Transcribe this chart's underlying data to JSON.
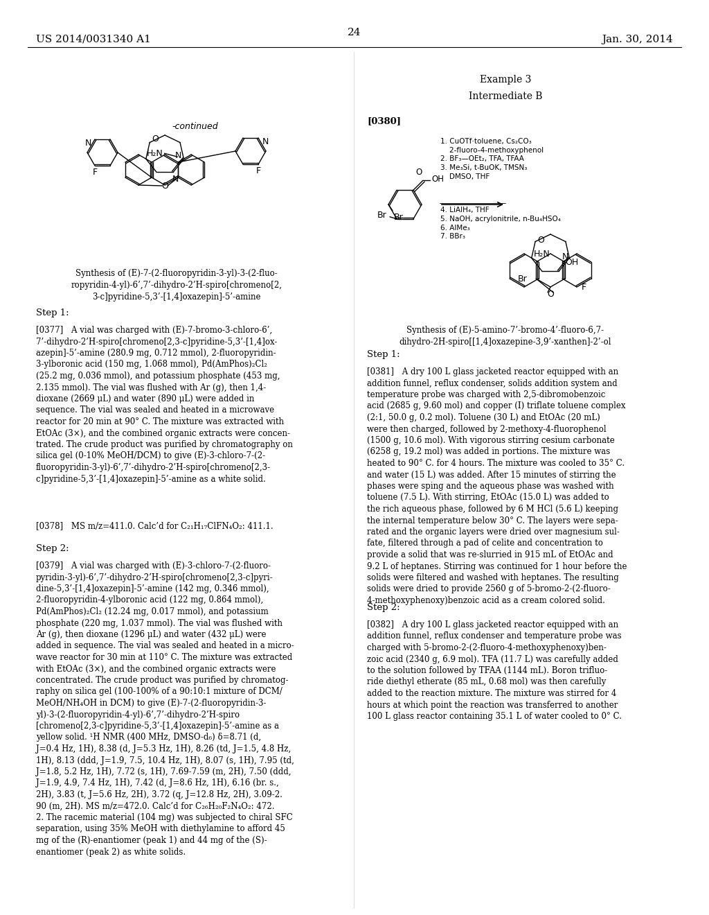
{
  "background_color": "#ffffff",
  "page_number": "24",
  "header_left": "US 2014/0031340 A1",
  "header_right": "Jan. 30, 2014",
  "continued_label": "-continued",
  "synthesis_caption_left": "Synthesis of (E)-7-(2-fluoropyridin-3-yl)-3-(2-fluo-\nropyridin-4-yl)-6’,7’-dihydro-2’H-spiro[chromeno[2,\n3-c]pyridine-5,3’-[1,4]oxazepin]-5’-amine",
  "step1_label": "Step 1:",
  "para_0377": "[0377] A vial was charged with (E)-7-bromo-3-chloro-6’,\n7’-dihydro-2’H-spiro[chromeno[2,3-c]pyridine-5,3’-[1,4]ox-\nazepin]-5’-amine (280.9 mg, 0.712 mmol), 2-fluoropyridin-\n3-ylboronic acid (150 mg, 1.068 mmol), Pd(AmPhos)₂Cl₂\n(25.2 mg, 0.036 mmol), and potassium phosphate (453 mg,\n2.135 mmol). The vial was flushed with Ar (g), then 1,4-\ndioxane (2669 μL) and water (890 μL) were added in\nsequence. The vial was sealed and heated in a microwave\nreactor for 20 min at 90° C. The mixture was extracted with\nEtOAc (3×), and the combined organic extracts were concen-\ntrated. The crude product was purified by chromatography on\nsilica gel (0-10% MeOH/DCM) to give (E)-3-chloro-7-(2-\nfluoropyridin-3-yl)-6’,7’-dihydro-2’H-spiro[chromeno[2,3-\nc]pyridine-5,3’-[1,4]oxazepin]-5’-amine as a white solid.",
  "para_0378": "[0378] MS m/z=411.0. Calc’d for C₂₁H₁₇ClFN₄O₂: 411.1.",
  "step2_label": "Step 2:",
  "para_0379": "[0379] A vial was charged with (E)-3-chloro-7-(2-fluoro-\npyridin-3-yl)-6’,7’-dihydro-2’H-spiro[chromeno[2,3-c]pyri-\ndine-5,3’-[1,4]oxazepin]-5’-amine (142 mg, 0.346 mmol),\n2-fluoropyridin-4-ylboronic acid (122 mg, 0.864 mmol),\nPd(AmPhos)₂Cl₂ (12.24 mg, 0.017 mmol), and potassium\nphosphate (220 mg, 1.037 mmol). The vial was flushed with\nAr (g), then dioxane (1296 μL) and water (432 μL) were\nadded in sequence. The vial was sealed and heated in a micro-\nwave reactor for 30 min at 110° C. The mixture was extracted\nwith EtOAc (3×), and the combined organic extracts were\nconcentrated. The crude product was purified by chromatog-\nraphy on silica gel (100-100% of a 90:10:1 mixture of DCM/\nMeOH/NH₄OH in DCM) to give (E)-7-(2-fluoropyridin-3-\nyl)-3-(2-fluoropyridin-4-yl)-6’,7’-dihydro-2’H-spiro\n[chromeno[2,3-c]pyridine-5,3’-[1,4]oxazepin]-5’-amine as a\nyellow solid. ¹H NMR (400 MHz, DMSO-d₆) δ=8.71 (d,\nJ=0.4 Hz, 1H), 8.38 (d, J=5.3 Hz, 1H), 8.26 (td, J=1.5, 4.8 Hz,\n1H), 8.13 (ddd, J=1.9, 7.5, 10.4 Hz, 1H), 8.07 (s, 1H), 7.95 (td,\nJ=1.8, 5.2 Hz, 1H), 7.72 (s, 1H), 7.69-7.59 (m, 2H), 7.50 (ddd,\nJ=1.9, 4.9, 7.4 Hz, 1H), 7.42 (d, J=8.6 Hz, 1H), 6.16 (br. s.,\n2H), 3.83 (t, J=5.6 Hz, 2H), 3.72 (q, J=12.8 Hz, 2H), 3.09-2.\n90 (m, 2H). MS m/z=472.0. Calc’d for C₂₆H₂₀F₂N₄O₂: 472.\n2. The racemic material (104 mg) was subjected to chiral SFC\nseparation, using 35% MeOH with diethylamine to afford 45\nmg of the (R)-enantiomer (peak 1) and 44 mg of the (S)-\nenantiomer (peak 2) as white solids.",
  "example3_label": "Example 3",
  "intermediate_b_label": "Intermediate B",
  "para_0380_label": "[0380]",
  "reaction_steps_above": "1. CuOTf·toluene, Cs₂CO₃\n    2-fluoro-4-methoxyphenol\n2. BF₃—OEt₂, TFA, TFAA\n3. Me₃Si, t-BuOK, TMSN₃\n    DMSO, THF",
  "reaction_steps_below": "4. LiAlH₄, THF\n5. NaOH, acrylonitrile, n-Bu₄HSO₄\n6. AlMe₃\n7. BBr₃",
  "synthesis_caption_right": "Synthesis of (E)-5-amino-7’-bromo-4’-fluoro-6,7-\ndihydro-2H-spiro[[1,4]oxazepine-3,9’-xanthen]-2’-ol",
  "step1_right_label": "Step 1:",
  "para_0381": "[0381] A dry 100 L glass jacketed reactor equipped with an\naddition funnel, reflux condenser, solids addition system and\ntemperature probe was charged with 2,5-dibromobenzoic\nacid (2685 g, 9.60 mol) and copper (I) triflate toluene complex\n(2:1, 50.0 g, 0.2 mol). Toluene (30 L) and EtOAc (20 mL)\nwere then charged, followed by 2-methoxy-4-fluorophenol\n(1500 g, 10.6 mol). With vigorous stirring cesium carbonate\n(6258 g, 19.2 mol) was added in portions. The mixture was\nheated to 90° C. for 4 hours. The mixture was cooled to 35° C.\nand water (15 L) was added. After 15 minutes of stirring the\nphases were sping and the aqueous phase was washed with\ntoluene (7.5 L). With stirring, EtOAc (15.0 L) was added to\nthe rich aqueous phase, followed by 6 M HCl (5.6 L) keeping\nthe internal temperature below 30° C. The layers were sepa-\nrated and the organic layers were dried over magnesium sul-\nfate, filtered through a pad of celite and concentration to\nprovide a solid that was re-slurried in 915 mL of EtOAc and\n9.2 L of heptanes. Stirring was continued for 1 hour before the\nsolids were filtered and washed with heptanes. The resulting\nsolids were dried to provide 2560 g of 5-bromo-2-(2-fluoro-\n4-methoxyphenoxy)benzoic acid as a cream colored solid.",
  "step2_right_label": "Step 2:",
  "para_0382": "[0382] A dry 100 L glass jacketed reactor equipped with an\naddition funnel, reflux condenser and temperature probe was\ncharged with 5-bromo-2-(2-fluoro-4-methoxyphenoxy)ben-\nzoic acid (2340 g, 6.9 mol). TFA (11.7 L) was carefully added\nto the solution followed by TFAA (1144 mL). Boron trifluo-\nride diethyl etherate (85 mL, 0.68 mol) was then carefully\nadded to the reaction mixture. The mixture was stirred for 4\nhours at which point the reaction was transferred to another\n100 L glass reactor containing 35.1 L of water cooled to 0° C."
}
